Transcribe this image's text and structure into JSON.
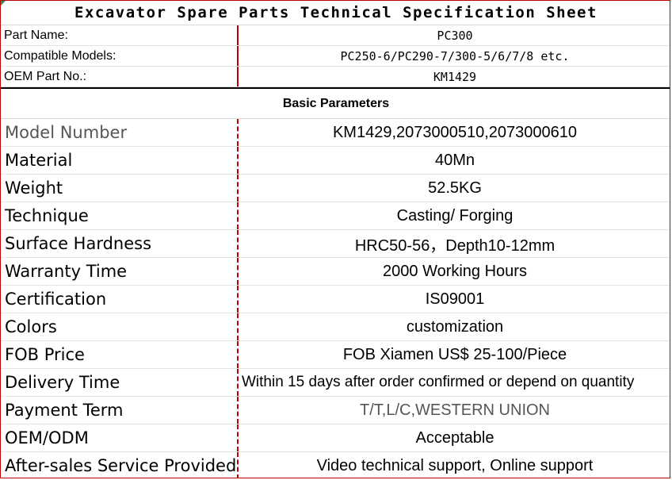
{
  "title": "Excavator Spare Parts Technical Specification Sheet",
  "header_rows": [
    {
      "label": "Part Name:",
      "value": "PC300"
    },
    {
      "label": "Compatible Models:",
      "value": "PC250-6/PC290-7/300-5/6/7/8 etc."
    },
    {
      "label": "OEM Part No.:",
      "value": "KM1429"
    }
  ],
  "section_heading": "Basic Parameters",
  "parameters": [
    {
      "label": "Model Number",
      "value": "KM1429,2073000510,2073000610"
    },
    {
      "label": "Material",
      "value": "40Mn"
    },
    {
      "label": "Weight",
      "value": "52.5KG"
    },
    {
      "label": "Technique",
      "value": "Casting/ Forging"
    },
    {
      "label": "Surface Hardness",
      "value": "HRC50-56，Depth10-12mm"
    },
    {
      "label": "Warranty Time",
      "value": "2000 Working Hours"
    },
    {
      "label": "Certification",
      "value": "IS09001"
    },
    {
      "label": "Colors",
      "value": "customization"
    },
    {
      "label": "FOB Price",
      "value": "FOB Xiamen US$ 25-100/Piece"
    },
    {
      "label": "Delivery Time",
      "value": "Within 15 days after order confirmed or depend on quantity"
    },
    {
      "label": "Payment Term",
      "value": "T/T,L/C,WESTERN UNION"
    },
    {
      "label": "OEM/ODM",
      "value": "Acceptable"
    },
    {
      "label": "After-sales Service Provided",
      "value": "Video technical support, Online support"
    }
  ]
}
